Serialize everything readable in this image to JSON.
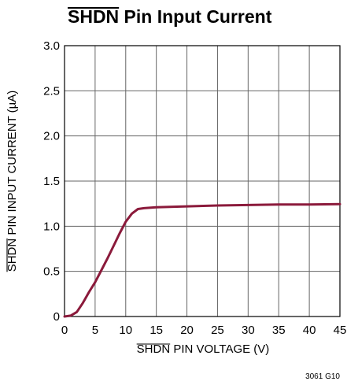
{
  "chart_data": {
    "type": "line",
    "title": "SHDN Pin Input Current",
    "title_overline_part": "SHDN",
    "xlabel": "SHDN PIN VOLTAGE (V)",
    "xlabel_overline_part": "SHDN",
    "ylabel": "SHDN PIN INPUT CURRENT (µA)",
    "ylabel_overline_part": "SHDN",
    "xlim": [
      0,
      45
    ],
    "ylim": [
      0,
      3.0
    ],
    "x_ticks": [
      0,
      5,
      10,
      15,
      20,
      25,
      30,
      35,
      40,
      45
    ],
    "x_tick_labels": [
      "0",
      "5",
      "10",
      "15",
      "20",
      "25",
      "30",
      "35",
      "40",
      "45"
    ],
    "y_ticks": [
      0,
      0.5,
      1.0,
      1.5,
      2.0,
      2.5,
      3.0
    ],
    "y_tick_labels": [
      "0",
      "0.5",
      "1.0",
      "1.5",
      "2.0",
      "2.5",
      "3.0"
    ],
    "grid": true,
    "line_color": "#8b1a3b",
    "series": [
      {
        "x": [
          0,
          1,
          2,
          3,
          4,
          5,
          6,
          7,
          8,
          9,
          10,
          11,
          12,
          13,
          15,
          20,
          25,
          30,
          35,
          40,
          45
        ],
        "y": [
          0,
          0.01,
          0.05,
          0.15,
          0.27,
          0.38,
          0.51,
          0.64,
          0.78,
          0.92,
          1.05,
          1.14,
          1.19,
          1.2,
          1.21,
          1.22,
          1.23,
          1.235,
          1.24,
          1.24,
          1.245
        ]
      }
    ],
    "figure_code": "3061 G10"
  }
}
